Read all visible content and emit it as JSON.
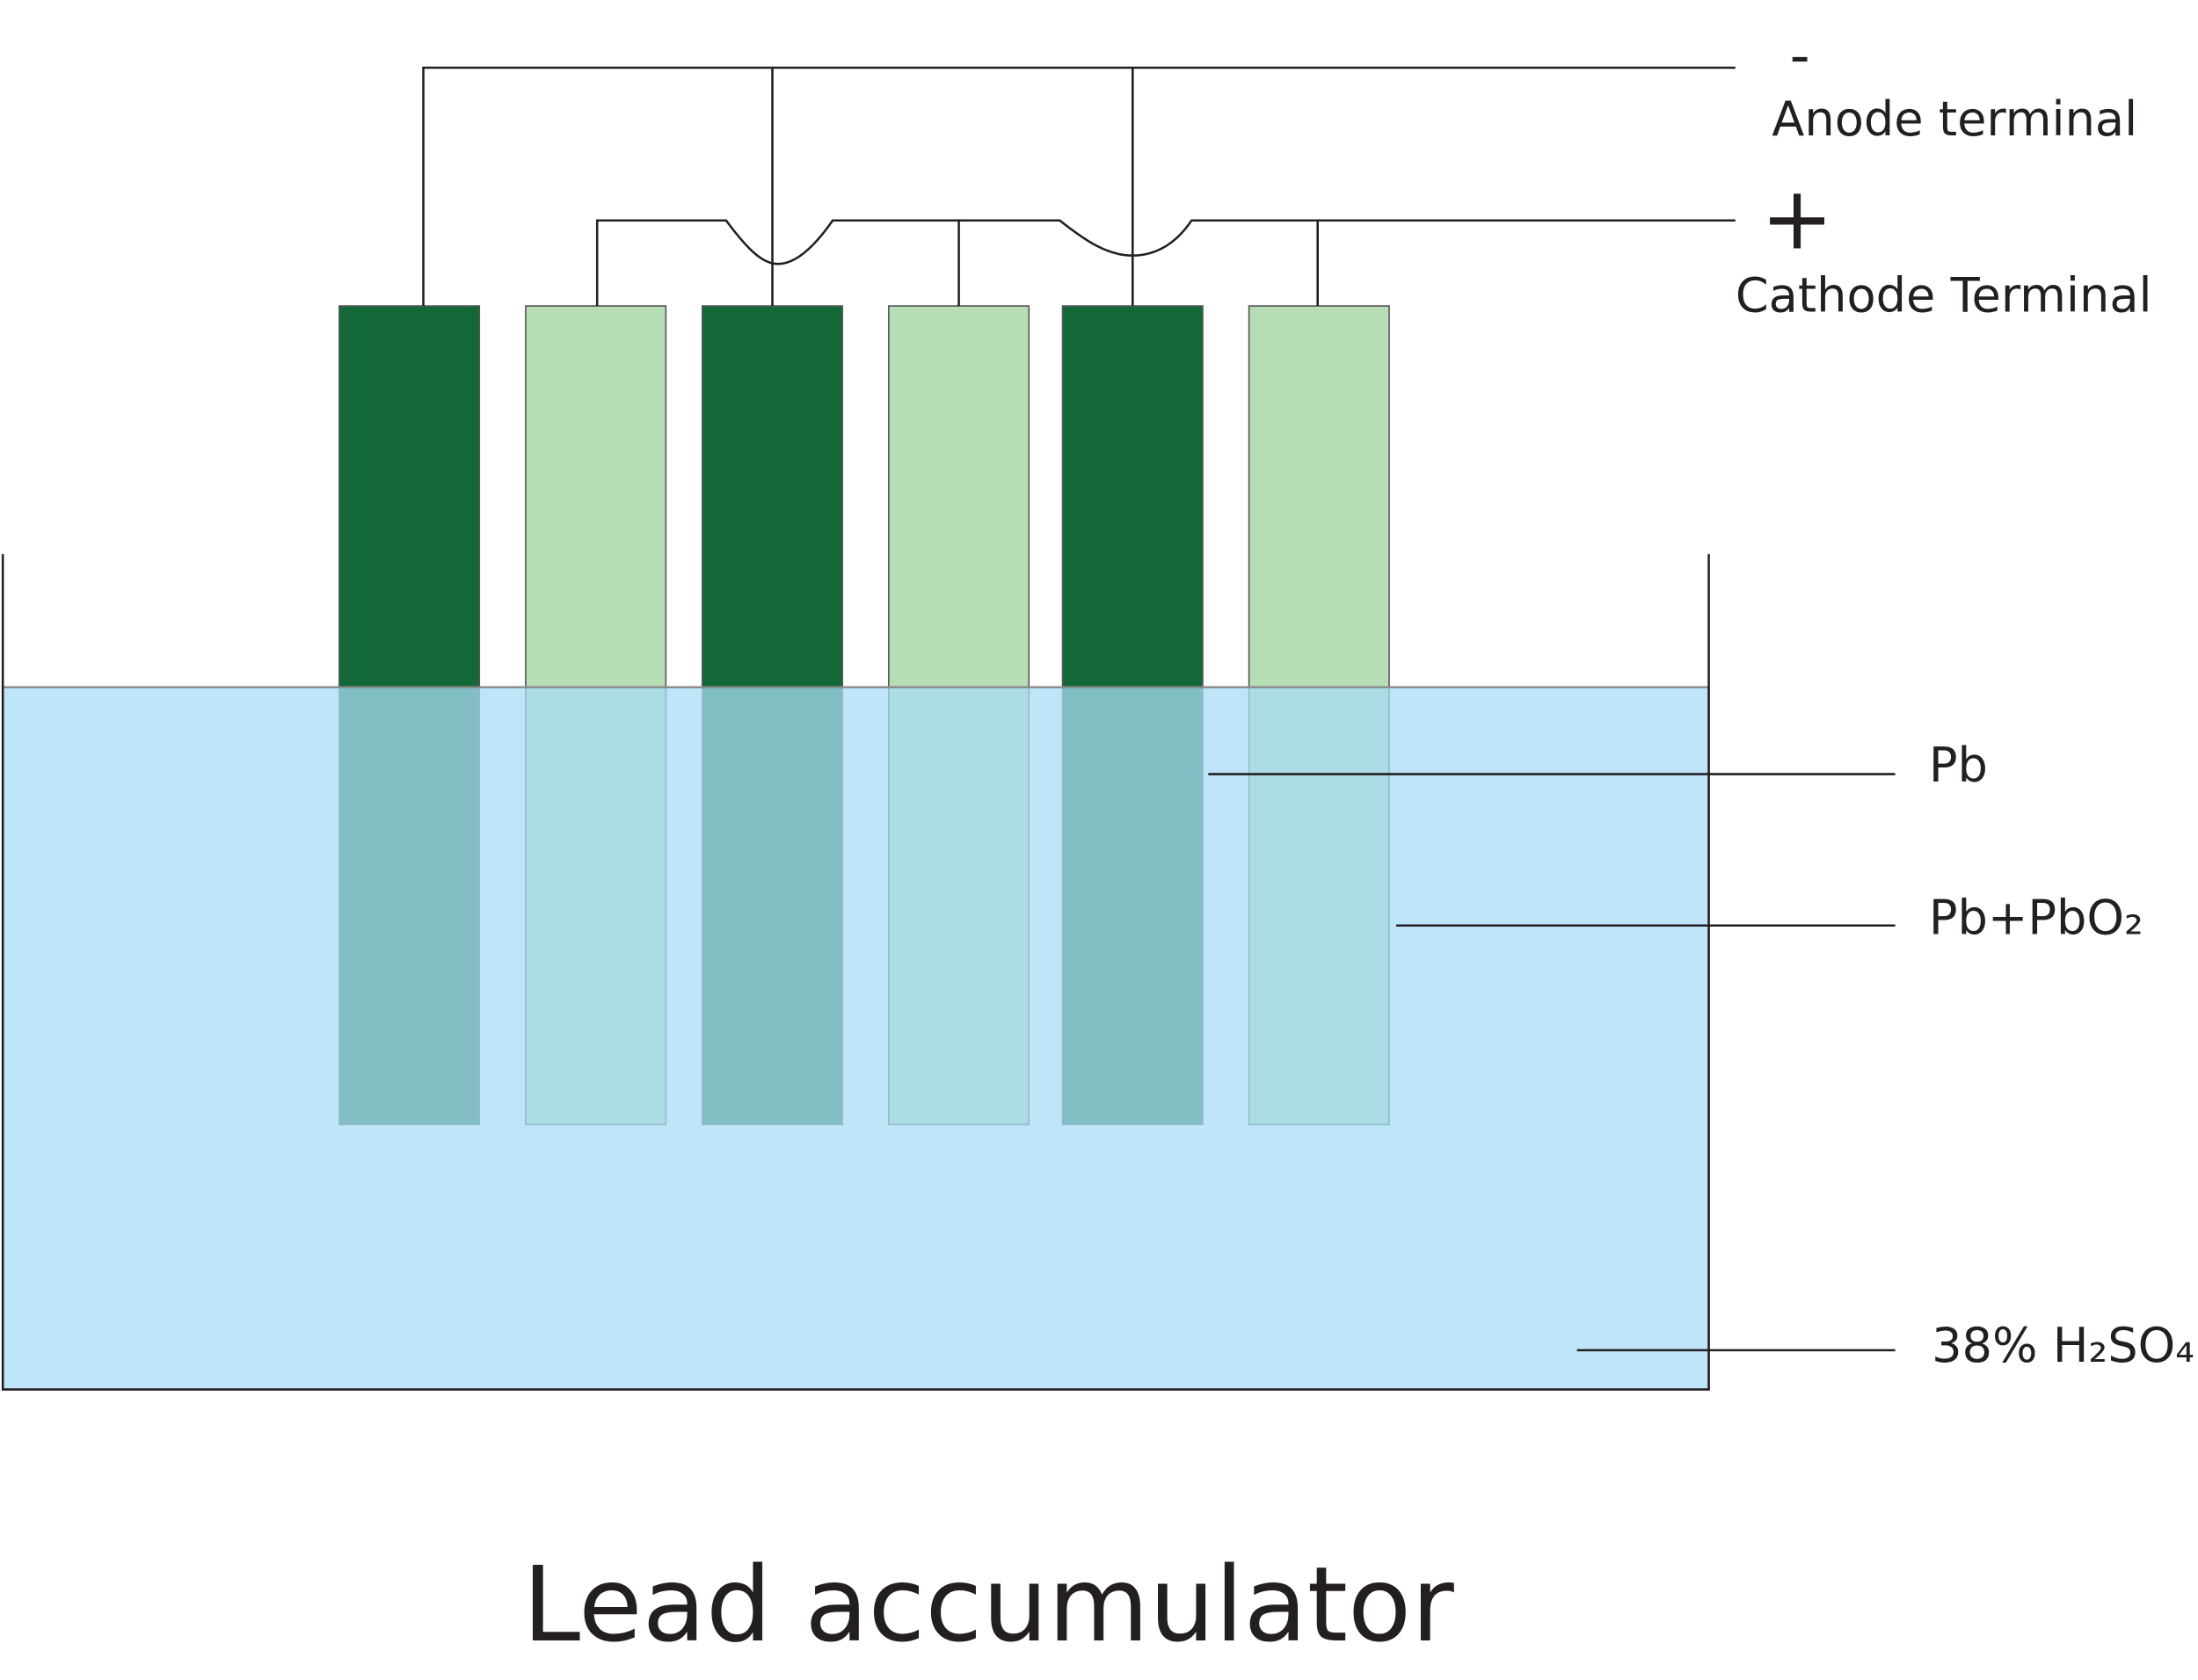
{
  "title": "Lead accumulator",
  "terminals": {
    "anode": {
      "sign": "-",
      "label": "Anode terminal"
    },
    "cathode": {
      "sign": "+",
      "label": "Cathode Terminal"
    }
  },
  "callouts": [
    "Pb",
    "Pb+PbO₂",
    "38% H₂SO₄"
  ]
}
